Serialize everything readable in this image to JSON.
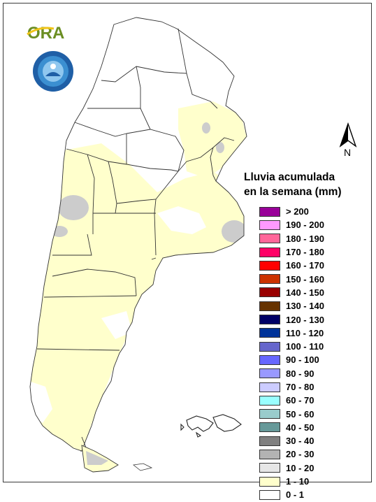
{
  "map": {
    "legend_title_line1": "Lluvia acumulada",
    "legend_title_line2": "en la semana (mm)",
    "north_label": "N",
    "logo_ora_text": "ORA",
    "legend": [
      {
        "label": "> 200",
        "color": "#990099"
      },
      {
        "label": "190 - 200",
        "color": "#ff99ff"
      },
      {
        "label": "180 - 190",
        "color": "#ff6699"
      },
      {
        "label": "170 - 180",
        "color": "#ff0066"
      },
      {
        "label": "160 - 170",
        "color": "#ff0000"
      },
      {
        "label": "150 - 160",
        "color": "#cc3300"
      },
      {
        "label": "140 - 150",
        "color": "#990000"
      },
      {
        "label": "130 - 140",
        "color": "#663300"
      },
      {
        "label": "120 - 130",
        "color": "#000066"
      },
      {
        "label": "110 - 120",
        "color": "#003399"
      },
      {
        "label": "100 - 110",
        "color": "#6666cc"
      },
      {
        "label": "90 - 100",
        "color": "#6666ff"
      },
      {
        "label": "80 - 90",
        "color": "#9999ff"
      },
      {
        "label": "70 - 80",
        "color": "#ccccff"
      },
      {
        "label": "60 - 70",
        "color": "#99ffff"
      },
      {
        "label": "50 - 60",
        "color": "#99cccc"
      },
      {
        "label": "40 - 50",
        "color": "#669999"
      },
      {
        "label": "30 - 40",
        "color": "#808080"
      },
      {
        "label": "20 - 30",
        "color": "#b3b3b3"
      },
      {
        "label": "10 - 20",
        "color": "#e6e6e6"
      },
      {
        "label": "1 - 10",
        "color": "#ffffcc"
      },
      {
        "label": "0 - 1",
        "color": "#ffffff"
      }
    ],
    "rain_colors": {
      "light": "#ffffcc",
      "gray": "#cccccc",
      "white": "#ffffff",
      "border": "#333333"
    }
  }
}
